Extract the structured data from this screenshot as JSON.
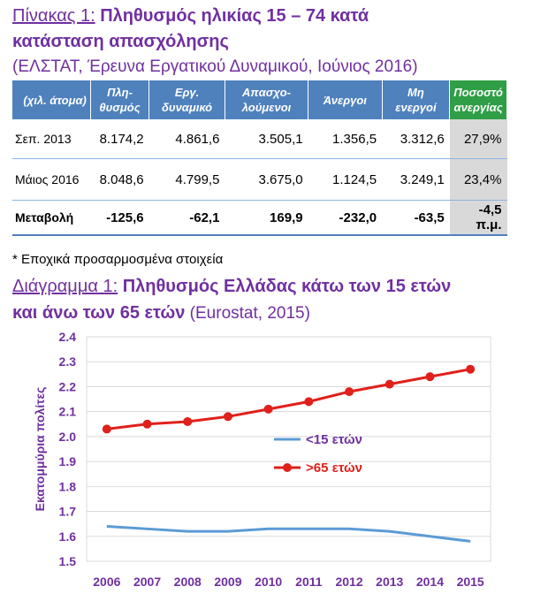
{
  "table_heading": {
    "prefix": "Πίνακας 1:",
    "title_line1": " Πληθυσμός ηλικίας 15 – 74 κατά",
    "title_line2": "κατάσταση απασχόλησης",
    "source": "(ΕΛΣΤΑΤ, Έρευνα Εργατικού Δυναμικού, Ιούνιος 2016)"
  },
  "table": {
    "headers": [
      "(χιλ. άτομα)",
      "Πλη-θυσμός",
      "Εργ. δυναμικό",
      "Απασχο-λούμενοι",
      "Άνεργοι",
      "Μη ενεργοί",
      "Ποσοστό ανεργίας"
    ],
    "rows": [
      [
        "Σεπ. 2013",
        "8.174,2",
        "4.861,6",
        "3.505,1",
        "1.356,5",
        "3.312,6",
        "27,9%"
      ],
      [
        "Μάιος 2016",
        "8.048,6",
        "4.799,5",
        "3.675,0",
        "1.124,5",
        "3.249,1",
        "23,4%"
      ],
      [
        "Μεταβολή",
        "-125,6",
        "-62,1",
        "169,9",
        "-232,0",
        "-63,5",
        "-4,5 π.μ."
      ]
    ]
  },
  "footnote": "* Εποχικά προσαρμοσμένα στοιχεία",
  "chart_heading": {
    "prefix": "Διάγραμμα 1:",
    "title_line1": " Πληθυσμός Ελλάδας κάτω των 15 ετών",
    "title_line2": "και άνω των 65 ετών",
    "source": " (Eurostat, 2015)"
  },
  "colors": {
    "purple": "#7030a0",
    "header_blue": "#4f81bd",
    "header_green": "#2f9e46",
    "under15": "#5b9bd5",
    "over65": "#e0201b",
    "axis_text": "#7030a0"
  },
  "chart_data": {
    "type": "line",
    "x": [
      "2006",
      "2007",
      "2008",
      "2009",
      "2010",
      "2011",
      "2012",
      "2013",
      "2014",
      "2015"
    ],
    "ylabel": "Εκατομμύρια πολίτες",
    "ylim": [
      1.5,
      2.4
    ],
    "yticks": [
      "1.5",
      "1.6",
      "1.7",
      "1.8",
      "1.9",
      "2.0",
      "2.1",
      "2.2",
      "2.3",
      "2.4"
    ],
    "grid": true,
    "legend_position": "inside-right",
    "series": [
      {
        "name": "<15 ετών",
        "values": [
          1.64,
          1.63,
          1.62,
          1.62,
          1.63,
          1.63,
          1.63,
          1.62,
          1.6,
          1.58
        ],
        "markers": false
      },
      {
        "name": ">65 ετών",
        "values": [
          2.03,
          2.05,
          2.06,
          2.08,
          2.11,
          2.14,
          2.18,
          2.21,
          2.24,
          2.27
        ],
        "markers": true
      }
    ]
  }
}
